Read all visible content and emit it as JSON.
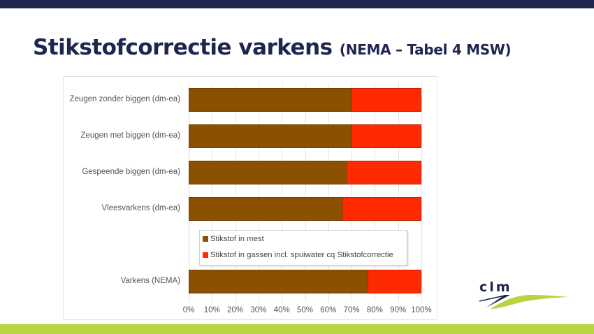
{
  "slide": {
    "title_main": "Stikstofcorrectie varkens",
    "title_sub": "(NEMA – Tabel 4 MSW)",
    "logo_text": "clm",
    "colors": {
      "topbar": "#20254f",
      "footer": "#b8d43e",
      "title": "#20254f"
    }
  },
  "chart_data": {
    "type": "bar",
    "orientation": "horizontal",
    "stacked": "100%",
    "title": "",
    "xlabel": "",
    "ylabel": "",
    "xlim": [
      0,
      100
    ],
    "grid": true,
    "legend_position": "inside-bottom",
    "categories": [
      "Zeugen zonder biggen (dm-ea)",
      "Zeugen met biggen (dm-ea)",
      "Gespeende biggen (dm-ea)",
      "Vleesvarkens (dm-ea)",
      "Varkens (NEMA)"
    ],
    "series": [
      {
        "name": "Stikstof in mest",
        "color": "#8b5000",
        "values": [
          70,
          70,
          68,
          66,
          77
        ]
      },
      {
        "name": "Stikstof in gassen incl. spuiwater cq Stikstofcorrectie",
        "color": "#ff2a00",
        "values": [
          30,
          30,
          32,
          34,
          23
        ]
      }
    ],
    "tick_labels": [
      "0%",
      "10%",
      "20%",
      "30%",
      "40%",
      "50%",
      "60%",
      "70%",
      "80%",
      "90%",
      "100%"
    ]
  }
}
